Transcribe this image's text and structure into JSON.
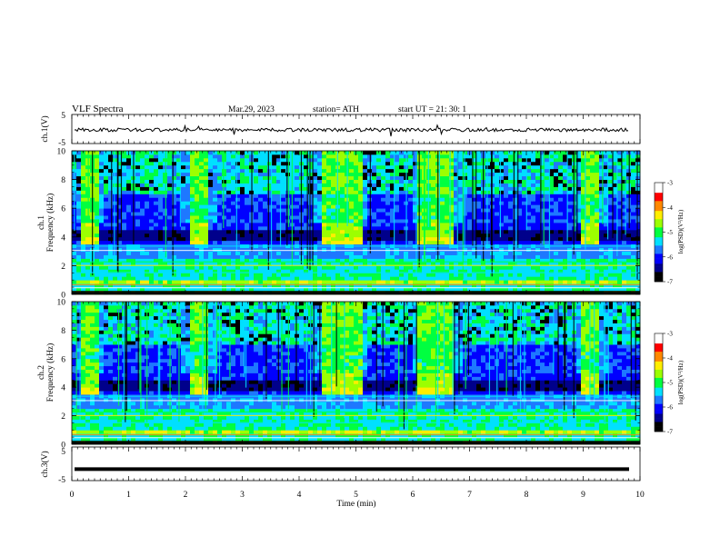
{
  "header": {
    "title": "VLF  Spectra",
    "date": "Mar.29, 2023",
    "station": "station= ATH",
    "start_ut": "start  UT  =    21: 30: 1"
  },
  "chart_data": [
    {
      "type": "line",
      "panel": "ch1-waveform",
      "ylabel": "ch.1(V)",
      "yticks": [
        "5",
        "-5"
      ],
      "ylim": [
        -5,
        5
      ],
      "trace_level": -0.3,
      "trace_color": "#000000"
    },
    {
      "type": "heatmap",
      "panel": "ch1-spectrogram",
      "ylabel": "Frequency  (kHz)",
      "ylabel_prefix": "ch.1",
      "yticks": [
        "0",
        "2",
        "4",
        "6",
        "8",
        "10"
      ],
      "ylim": [
        0,
        10
      ],
      "colorbar": {
        "label": "log(PSD)(V²/Hz)",
        "ticks": [
          "-3",
          "-4",
          "-5",
          "-6",
          "-7"
        ],
        "range": [
          -7,
          -3
        ]
      }
    },
    {
      "type": "heatmap",
      "panel": "ch2-spectrogram",
      "ylabel": "Frequency  (kHz)",
      "ylabel_prefix": "ch.2",
      "yticks": [
        "0",
        "2",
        "4",
        "6",
        "8",
        "10"
      ],
      "ylim": [
        0,
        10
      ],
      "colorbar": {
        "label": "log(PSD)(V²/Hz)",
        "ticks": [
          "-3",
          "-4",
          "-5",
          "-6",
          "-7"
        ],
        "range": [
          -7,
          -3
        ]
      }
    },
    {
      "type": "line",
      "panel": "ch3-waveform",
      "ylabel": "ch.3(V)",
      "yticks": [
        "5",
        "-5"
      ],
      "ylim": [
        -5,
        5
      ],
      "trace_level": -1.6,
      "trace_color": "#000000"
    }
  ],
  "xaxis": {
    "label": "Time  (min)",
    "ticks": [
      "0",
      "1",
      "2",
      "3",
      "4",
      "5",
      "6",
      "7",
      "8",
      "9",
      "10"
    ],
    "xlim": [
      0,
      10
    ]
  },
  "spectrogram": {
    "burst_intervals_min": [
      [
        0.16,
        0.45
      ],
      [
        2.05,
        2.4
      ],
      [
        4.4,
        5.1
      ],
      [
        6.1,
        6.75
      ],
      [
        9.0,
        9.3
      ]
    ],
    "burst_band_khz": [
      3.4,
      10.0
    ],
    "colors": {
      "black": "#000000",
      "navy": "#00008b",
      "blue": "#0000ff",
      "azure": "#1e78ff",
      "cyan": "#00e0ff",
      "green": "#00ff40",
      "lime": "#9cff00",
      "yellow": "#ffee00",
      "orange": "#ff8800",
      "red": "#ff0000",
      "white": "#ffffff"
    }
  }
}
